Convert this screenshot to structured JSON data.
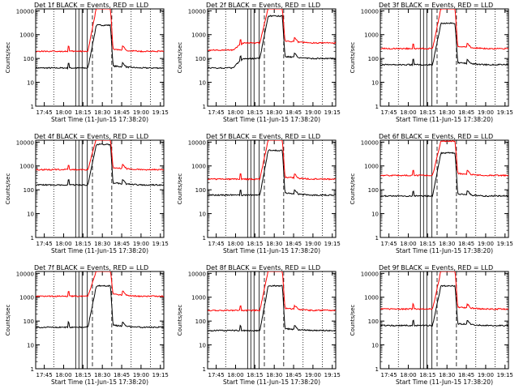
{
  "chart_data": [
    {
      "type": "line",
      "title": "Det 1f BLACK = Events, RED = LLD",
      "xlabel": "Start Time (11-Jun-15 17:38:20)",
      "ylabel": "Counts/sec",
      "yscale": "log",
      "ylim": [
        1,
        12000
      ],
      "x_ticks": [
        "17:45",
        "18:00",
        "18:15",
        "18:30",
        "18:45",
        "19:00",
        "19:15"
      ],
      "y_ticks": [
        "1",
        "10",
        "100",
        "1000",
        "10000"
      ],
      "series": [
        {
          "color": "#000000",
          "level": 40,
          "peak": 2500,
          "pre": 1.0
        },
        {
          "color": "#ff0000",
          "level": 200,
          "peak": 13000,
          "pre": 1.0
        }
      ]
    },
    {
      "type": "line",
      "title": "Det 2f BLACK = Events, RED = LLD",
      "xlabel": "Start Time (11-Jun-15 17:38:20)",
      "ylabel": "Counts/sec",
      "yscale": "log",
      "ylim": [
        1,
        12000
      ],
      "x_ticks": [
        "17:45",
        "18:00",
        "18:15",
        "18:30",
        "18:45",
        "19:00",
        "19:15"
      ],
      "y_ticks": [
        "1",
        "10",
        "100",
        "1000",
        "10000"
      ],
      "series": [
        {
          "color": "#000000",
          "level": 100,
          "peak": 6000,
          "pre": 2.5
        },
        {
          "color": "#ff0000",
          "level": 450,
          "peak": 13000,
          "pre": 2.0
        }
      ]
    },
    {
      "type": "line",
      "title": "Det 3f BLACK = Events, RED = LLD",
      "xlabel": "Start Time (11-Jun-15 17:38:20)",
      "ylabel": "Counts/sec",
      "yscale": "log",
      "ylim": [
        1,
        12000
      ],
      "x_ticks": [
        "17:45",
        "18:00",
        "18:15",
        "18:30",
        "18:45",
        "19:00",
        "19:15"
      ],
      "y_ticks": [
        "1",
        "10",
        "100",
        "1000",
        "10000"
      ],
      "series": [
        {
          "color": "#000000",
          "level": 55,
          "peak": 3000,
          "pre": 1.0
        },
        {
          "color": "#ff0000",
          "level": 260,
          "peak": 13000,
          "pre": 1.0
        }
      ]
    },
    {
      "type": "line",
      "title": "Det 4f BLACK = Events, RED = LLD",
      "xlabel": "Start Time (11-Jun-15 17:38:20)",
      "ylabel": "Counts/sec",
      "yscale": "log",
      "ylim": [
        1,
        12000
      ],
      "x_ticks": [
        "17:45",
        "18:00",
        "18:15",
        "18:30",
        "18:45",
        "19:00",
        "19:15"
      ],
      "y_ticks": [
        "1",
        "10",
        "100",
        "1000",
        "10000"
      ],
      "series": [
        {
          "color": "#000000",
          "level": 160,
          "peak": 8000,
          "pre": 1.0
        },
        {
          "color": "#ff0000",
          "level": 700,
          "peak": 14000,
          "pre": 1.0
        }
      ]
    },
    {
      "type": "line",
      "title": "Det 5f BLACK = Events, RED = LLD",
      "xlabel": "Start Time (11-Jun-15 17:38:20)",
      "ylabel": "Counts/sec",
      "yscale": "log",
      "ylim": [
        1,
        12000
      ],
      "x_ticks": [
        "17:45",
        "18:00",
        "18:15",
        "18:30",
        "18:45",
        "19:00",
        "19:15"
      ],
      "y_ticks": [
        "1",
        "10",
        "100",
        "1000",
        "10000"
      ],
      "series": [
        {
          "color": "#000000",
          "level": 60,
          "peak": 4500,
          "pre": 1.0
        },
        {
          "color": "#ff0000",
          "level": 280,
          "peak": 13000,
          "pre": 1.0
        }
      ]
    },
    {
      "type": "line",
      "title": "Det 6f BLACK = Events, RED = LLD",
      "xlabel": "Start Time (11-Jun-15 17:38:20)",
      "ylabel": "Counts/sec",
      "yscale": "log",
      "ylim": [
        1,
        12000
      ],
      "x_ticks": [
        "17:45",
        "18:00",
        "18:15",
        "18:30",
        "18:45",
        "19:00",
        "19:15"
      ],
      "y_ticks": [
        "1",
        "10",
        "100",
        "1000",
        "10000"
      ],
      "series": [
        {
          "color": "#000000",
          "level": 55,
          "peak": 3500,
          "pre": 1.0
        },
        {
          "color": "#ff0000",
          "level": 400,
          "peak": 11000,
          "pre": 1.0
        }
      ]
    },
    {
      "type": "line",
      "title": "Det 7f BLACK = Events, RED = LLD",
      "xlabel": "Start Time (11-Jun-15 17:38:20)",
      "ylabel": "Counts/sec",
      "yscale": "log",
      "ylim": [
        1,
        12000
      ],
      "x_ticks": [
        "17:45",
        "18:00",
        "18:15",
        "18:30",
        "18:45",
        "19:00",
        "19:15"
      ],
      "y_ticks": [
        "1",
        "10",
        "100",
        "1000",
        "10000"
      ],
      "series": [
        {
          "color": "#000000",
          "level": 55,
          "peak": 3000,
          "pre": 1.0
        },
        {
          "color": "#ff0000",
          "level": 1100,
          "peak": 13000,
          "pre": 1.0
        }
      ]
    },
    {
      "type": "line",
      "title": "Det 8f BLACK = Events, RED = LLD",
      "xlabel": "Start Time (11-Jun-15 17:38:20)",
      "ylabel": "Counts/sec",
      "yscale": "log",
      "ylim": [
        1,
        12000
      ],
      "x_ticks": [
        "17:45",
        "18:00",
        "18:15",
        "18:30",
        "18:45",
        "19:00",
        "19:15"
      ],
      "y_ticks": [
        "1",
        "10",
        "100",
        "1000",
        "10000"
      ],
      "series": [
        {
          "color": "#000000",
          "level": 40,
          "peak": 3000,
          "pre": 1.0
        },
        {
          "color": "#ff0000",
          "level": 280,
          "peak": 13000,
          "pre": 1.0
        }
      ]
    },
    {
      "type": "line",
      "title": "Det 9f BLACK = Events, RED = LLD",
      "xlabel": "Start Time (11-Jun-15 17:38:20)",
      "ylabel": "Counts/sec",
      "yscale": "log",
      "ylim": [
        1,
        12000
      ],
      "x_ticks": [
        "17:45",
        "18:00",
        "18:15",
        "18:30",
        "18:45",
        "19:00",
        "19:15"
      ],
      "y_ticks": [
        "1",
        "10",
        "100",
        "1000",
        "10000"
      ],
      "series": [
        {
          "color": "#000000",
          "level": 65,
          "peak": 3000,
          "pre": 1.0
        },
        {
          "color": "#ff0000",
          "level": 320,
          "peak": 13000,
          "pre": 1.0
        }
      ]
    }
  ]
}
